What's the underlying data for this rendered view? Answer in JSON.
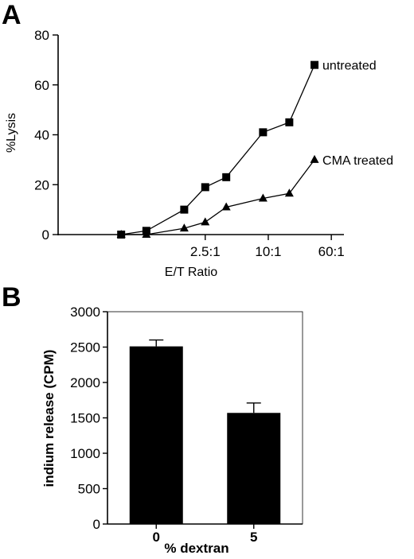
{
  "panels": {
    "a_label": "A",
    "b_label": "B"
  },
  "chart_data": [
    {
      "type": "line",
      "panel": "A",
      "title": "",
      "xlabel": "E/T Ratio",
      "ylabel": "%Lysis",
      "ylim": [
        0,
        80
      ],
      "yticks": [
        0,
        20,
        40,
        60,
        80
      ],
      "xticks": [
        {
          "x": 7,
          "label": "2.5:1"
        },
        {
          "x": 10,
          "label": "10:1"
        },
        {
          "x": 13,
          "label": "60:1"
        }
      ],
      "xlim": [
        0,
        13.6
      ],
      "grid": false,
      "series": [
        {
          "name": "untreated",
          "marker": "square",
          "x": [
            3,
            4.2,
            6,
            7,
            8,
            9.75,
            11,
            12.2
          ],
          "y": [
            0,
            1.5,
            10,
            19,
            23,
            41,
            45,
            68
          ]
        },
        {
          "name": "CMA treated",
          "marker": "triangle",
          "x": [
            3,
            4.2,
            6,
            7,
            8,
            9.75,
            11,
            12.2
          ],
          "y": [
            0,
            0,
            2.5,
            5,
            11,
            14.5,
            16.5,
            30
          ]
        }
      ]
    },
    {
      "type": "bar",
      "panel": "B",
      "title": "",
      "xlabel": "% dextran",
      "ylabel": "indium release (CPM)",
      "ylim": [
        0,
        3000
      ],
      "yticks": [
        0,
        500,
        1000,
        1500,
        2000,
        2500,
        3000
      ],
      "categories": [
        "0",
        "5"
      ],
      "values": [
        2510,
        1570
      ],
      "errors": [
        90,
        140
      ],
      "bar_color": "#000000",
      "grid": false
    }
  ]
}
